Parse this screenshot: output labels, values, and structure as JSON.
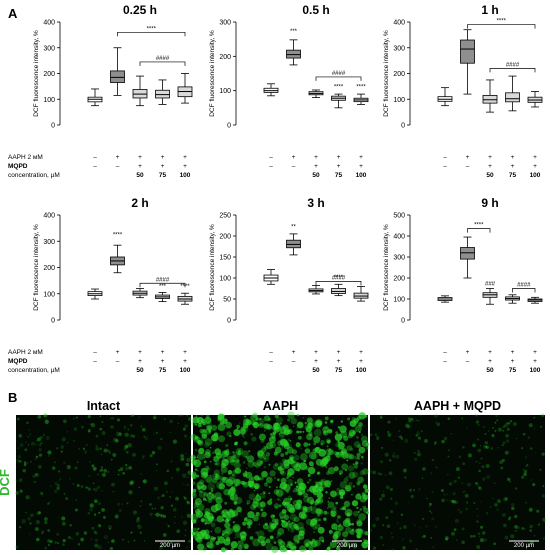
{
  "panel_a_label": "A",
  "panel_b_label": "B",
  "ylabel": "DCF fluorescence intensity, %",
  "condition_rows": [
    {
      "label": "AAPH 2 мМ",
      "values": [
        "–",
        "+",
        "+",
        "+",
        "+"
      ]
    },
    {
      "label": "MQPD",
      "values": [
        "–",
        "–",
        "+",
        "+",
        "+"
      ]
    },
    {
      "label": "concentration, µM",
      "values": [
        "",
        "",
        "50",
        "75",
        "100"
      ]
    }
  ],
  "colors": {
    "aaph": "#8f8f8f",
    "mqpd": "#d9d9d9",
    "control": "#ffffff",
    "micro_green": "#27d027"
  },
  "chart_data": [
    {
      "type": "boxplot",
      "title": "0.25 h",
      "ylim": [
        0,
        400
      ],
      "yticks": [
        0,
        100,
        200,
        300,
        400
      ],
      "categories": [
        "Intact",
        "AAPH",
        "AAPH + MQPD 50",
        "AAPH + MQPD 75",
        "AAPH + MQPD 100"
      ],
      "boxes": [
        {
          "min": 75,
          "q1": 90,
          "median": 100,
          "q3": 108,
          "max": 140
        },
        {
          "min": 115,
          "q1": 165,
          "median": 185,
          "q3": 210,
          "max": 300
        },
        {
          "min": 75,
          "q1": 105,
          "median": 120,
          "q3": 138,
          "max": 190
        },
        {
          "min": 80,
          "q1": 105,
          "median": 118,
          "q3": 135,
          "max": 175
        },
        {
          "min": 85,
          "q1": 110,
          "median": 130,
          "q3": 148,
          "max": 200
        }
      ],
      "brackets": [
        {
          "from": 1,
          "to": 4,
          "y": 360,
          "label": "****"
        },
        {
          "from": 2,
          "to": 4,
          "y": 245,
          "label": "####"
        }
      ],
      "marks": []
    },
    {
      "type": "boxplot",
      "title": "0.5 h",
      "ylim": [
        0,
        300
      ],
      "yticks": [
        0,
        100,
        200,
        300
      ],
      "categories": [
        "Intact",
        "AAPH",
        "AAPH + MQPD 50",
        "AAPH + MQPD 75",
        "AAPH + MQPD 100"
      ],
      "boxes": [
        {
          "min": 85,
          "q1": 95,
          "median": 100,
          "q3": 107,
          "max": 120
        },
        {
          "min": 175,
          "q1": 195,
          "median": 205,
          "q3": 218,
          "max": 248
        },
        {
          "min": 80,
          "q1": 88,
          "median": 92,
          "q3": 97,
          "max": 102
        },
        {
          "min": 50,
          "q1": 72,
          "median": 78,
          "q3": 84,
          "max": 90
        },
        {
          "min": 60,
          "q1": 68,
          "median": 73,
          "q3": 78,
          "max": 90
        }
      ],
      "brackets": [
        {
          "from": 2,
          "to": 4,
          "y": 140,
          "label": "####"
        }
      ],
      "marks": [
        {
          "at": 1,
          "y": 268,
          "label": "***"
        },
        {
          "at": 3,
          "y": 106,
          "label": "****"
        },
        {
          "at": 4,
          "y": 106,
          "label": "****"
        }
      ]
    },
    {
      "type": "boxplot",
      "title": "1 h",
      "ylim": [
        0,
        400
      ],
      "yticks": [
        0,
        100,
        200,
        300,
        400
      ],
      "categories": [
        "Intact",
        "AAPH",
        "AAPH + MQPD 50",
        "AAPH + MQPD 75",
        "AAPH + MQPD 100"
      ],
      "boxes": [
        {
          "min": 75,
          "q1": 92,
          "median": 100,
          "q3": 110,
          "max": 145
        },
        {
          "min": 120,
          "q1": 240,
          "median": 295,
          "q3": 330,
          "max": 370
        },
        {
          "min": 50,
          "q1": 85,
          "median": 98,
          "q3": 115,
          "max": 175
        },
        {
          "min": 55,
          "q1": 90,
          "median": 102,
          "q3": 125,
          "max": 190
        },
        {
          "min": 70,
          "q1": 88,
          "median": 97,
          "q3": 108,
          "max": 130
        }
      ],
      "brackets": [
        {
          "from": 1,
          "to": 4,
          "y": 390,
          "label": "****"
        },
        {
          "from": 2,
          "to": 4,
          "y": 220,
          "label": "####"
        }
      ],
      "marks": []
    },
    {
      "type": "boxplot",
      "title": "2 h",
      "ylim": [
        0,
        400
      ],
      "yticks": [
        0,
        100,
        200,
        300,
        400
      ],
      "categories": [
        "Intact",
        "AAPH",
        "AAPH + MQPD 50",
        "AAPH + MQPD 75",
        "AAPH + MQPD 100"
      ],
      "boxes": [
        {
          "min": 80,
          "q1": 93,
          "median": 100,
          "q3": 108,
          "max": 118
        },
        {
          "min": 180,
          "q1": 210,
          "median": 225,
          "q3": 240,
          "max": 285
        },
        {
          "min": 85,
          "q1": 95,
          "median": 102,
          "q3": 110,
          "max": 120
        },
        {
          "min": 70,
          "q1": 82,
          "median": 88,
          "q3": 95,
          "max": 105
        },
        {
          "min": 60,
          "q1": 72,
          "median": 80,
          "q3": 90,
          "max": 102
        }
      ],
      "brackets": [
        {
          "from": 2,
          "to": 4,
          "y": 140,
          "label": "####"
        }
      ],
      "marks": [
        {
          "at": 1,
          "y": 318,
          "label": "****"
        },
        {
          "at": 3,
          "y": 122,
          "label": "***"
        },
        {
          "at": 4,
          "y": 122,
          "label": "****"
        }
      ]
    },
    {
      "type": "boxplot",
      "title": "3 h",
      "ylim": [
        0,
        250
      ],
      "yticks": [
        0,
        50,
        100,
        150,
        200,
        250
      ],
      "categories": [
        "Intact",
        "AAPH",
        "AAPH + MQPD 50",
        "AAPH + MQPD 75",
        "AAPH + MQPD 100"
      ],
      "boxes": [
        {
          "min": 85,
          "q1": 93,
          "median": 100,
          "q3": 107,
          "max": 120
        },
        {
          "min": 155,
          "q1": 172,
          "median": 180,
          "q3": 190,
          "max": 205
        },
        {
          "min": 62,
          "q1": 67,
          "median": 70,
          "q3": 74,
          "max": 82
        },
        {
          "min": 58,
          "q1": 63,
          "median": 68,
          "q3": 75,
          "max": 85
        },
        {
          "min": 45,
          "q1": 52,
          "median": 57,
          "q3": 64,
          "max": 80
        }
      ],
      "brackets": [
        {
          "from": 2,
          "to": 4,
          "y": 92,
          "label": "####"
        }
      ],
      "marks": [
        {
          "at": 1,
          "y": 218,
          "label": "**"
        },
        {
          "at": 3,
          "y": 98,
          "label": "****"
        }
      ]
    },
    {
      "type": "boxplot",
      "title": "9 h",
      "ylim": [
        0,
        500
      ],
      "yticks": [
        0,
        100,
        200,
        300,
        400,
        500
      ],
      "categories": [
        "Intact",
        "AAPH",
        "AAPH + MQPD 50",
        "AAPH + MQPD 75",
        "AAPH + MQPD 100"
      ],
      "boxes": [
        {
          "min": 85,
          "q1": 93,
          "median": 100,
          "q3": 107,
          "max": 115
        },
        {
          "min": 200,
          "q1": 290,
          "median": 320,
          "q3": 345,
          "max": 395
        },
        {
          "min": 75,
          "q1": 108,
          "median": 120,
          "q3": 130,
          "max": 150
        },
        {
          "min": 80,
          "q1": 95,
          "median": 102,
          "q3": 110,
          "max": 120
        },
        {
          "min": 80,
          "q1": 88,
          "median": 95,
          "q3": 100,
          "max": 108
        }
      ],
      "brackets": [
        {
          "from": 1,
          "to": 2,
          "y": 435,
          "label": "****"
        },
        {
          "from": 3,
          "to": 4,
          "y": 150,
          "label": "####"
        }
      ],
      "marks": [
        {
          "at": 2,
          "y": 165,
          "label": "###"
        }
      ]
    }
  ],
  "micrographs": {
    "dcf_label": "DCF",
    "items": [
      {
        "title": "Intact",
        "scale_bar": "200 µm",
        "level": 0.25
      },
      {
        "title": "AAPH",
        "scale_bar": "200 µm",
        "level": 0.9
      },
      {
        "title": "AAPH + MQPD",
        "scale_bar": "200 µm",
        "level": 0.18
      }
    ]
  }
}
